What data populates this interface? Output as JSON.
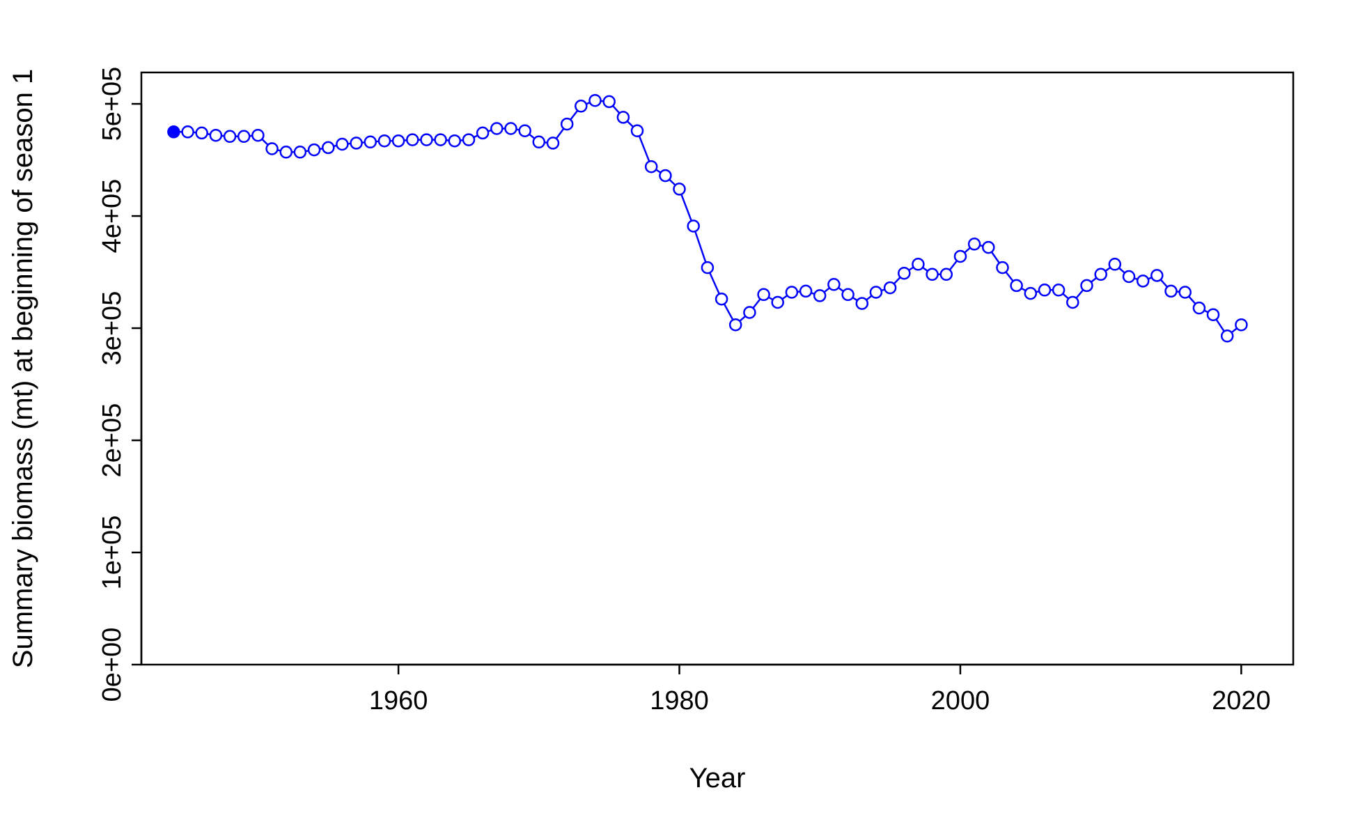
{
  "chart_data": {
    "type": "line",
    "title": "",
    "xlabel": "Year",
    "ylabel": "Summary biomass (mt) at beginning of season 1",
    "xlim": [
      1941.7,
      2023.7
    ],
    "ylim": [
      0,
      528000
    ],
    "x_ticks": [
      1960,
      1980,
      2000,
      2020
    ],
    "x_tick_labels": [
      "1960",
      "1980",
      "2000",
      "2020"
    ],
    "y_ticks": [
      0,
      100000,
      200000,
      300000,
      400000,
      500000
    ],
    "y_tick_labels": [
      "0e+00",
      "1e+05",
      "2e+05",
      "3e+05",
      "4e+05",
      "5e+05"
    ],
    "grid": false,
    "legend": "none",
    "colors": {
      "series": "#0000ff",
      "axis": "#000000"
    },
    "series": [
      {
        "x": [
          1944,
          1945,
          1946,
          1947,
          1948,
          1949,
          1950,
          1951,
          1952,
          1953,
          1954,
          1955,
          1956,
          1957,
          1958,
          1959,
          1960,
          1961,
          1962,
          1963,
          1964,
          1965,
          1966,
          1967,
          1968,
          1969,
          1970,
          1971,
          1972,
          1973,
          1974,
          1975,
          1976,
          1977,
          1978,
          1979,
          1980,
          1981,
          1982,
          1983,
          1984,
          1985,
          1986,
          1987,
          1988,
          1989,
          1990,
          1991,
          1992,
          1993,
          1994,
          1995,
          1996,
          1997,
          1998,
          1999,
          2000,
          2001,
          2002,
          2003,
          2004,
          2005,
          2006,
          2007,
          2008,
          2009,
          2010,
          2011,
          2012,
          2013,
          2014,
          2015,
          2016,
          2017,
          2018,
          2019,
          2020
        ],
        "values": [
          475000,
          475000,
          474000,
          472000,
          471000,
          471000,
          472000,
          460000,
          457000,
          457000,
          459000,
          461000,
          464000,
          465000,
          466000,
          467000,
          467000,
          468000,
          468000,
          468000,
          467000,
          468000,
          474000,
          478000,
          478000,
          476000,
          466000,
          465000,
          482000,
          498000,
          503000,
          502000,
          488000,
          476000,
          444000,
          436000,
          424000,
          391000,
          354000,
          326000,
          303000,
          314000,
          330000,
          323000,
          332000,
          333000,
          329000,
          339000,
          330000,
          322000,
          332000,
          336000,
          349000,
          357000,
          348000,
          348000,
          364000,
          375000,
          372000,
          354000,
          338000,
          331000,
          334000,
          334000,
          323000,
          338000,
          348000,
          357000,
          346000,
          342000,
          347000,
          333000,
          332000,
          318000,
          312000,
          293000,
          303000
        ],
        "first_point_filled": true
      }
    ]
  }
}
